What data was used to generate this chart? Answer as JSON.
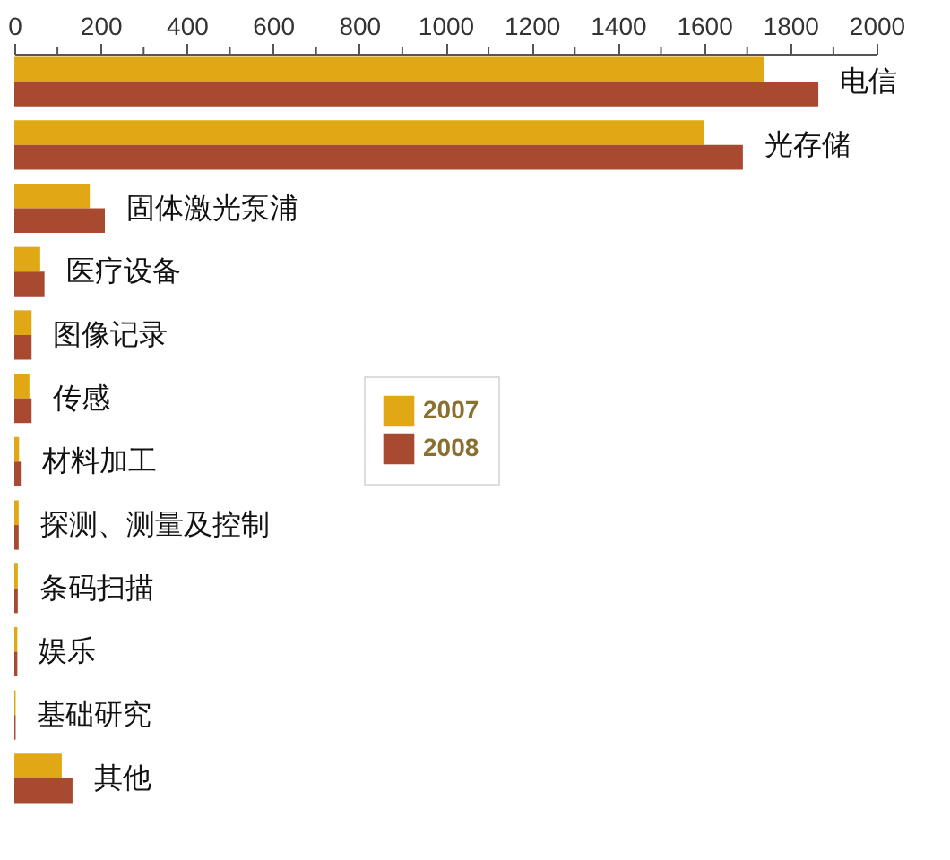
{
  "chart_data": {
    "type": "bar",
    "orientation": "horizontal",
    "categories": [
      "电信",
      "光存储",
      "固体激光泵浦",
      "医疗设备",
      "图像记录",
      "传感",
      "材料加工",
      "探测、测量及控制",
      "条码扫描",
      "娱乐",
      "基础研究",
      "其他"
    ],
    "series": [
      {
        "name": "2007",
        "color": "#e0a814",
        "values": [
          1740,
          1600,
          175,
          60,
          40,
          35,
          11,
          10,
          8,
          7,
          3,
          110
        ]
      },
      {
        "name": "2008",
        "color": "#a84a30",
        "values": [
          1865,
          1690,
          210,
          70,
          40,
          40,
          15,
          10,
          8,
          7,
          3,
          135
        ]
      }
    ],
    "xlim": [
      0,
      2000
    ],
    "xticks": [
      0,
      {
        "value": 100,
        "label": null
      },
      200,
      {
        "value": 300,
        "label": null
      },
      400,
      {
        "value": 500,
        "label": null
      },
      600,
      {
        "value": 700,
        "label": null
      },
      800,
      {
        "value": 900,
        "label": null
      },
      1000,
      {
        "value": 1100,
        "label": null
      },
      1200,
      {
        "value": 1300,
        "label": null
      },
      1400,
      {
        "value": 1500,
        "label": null
      },
      1600,
      {
        "value": 1700,
        "label": null
      },
      1800,
      {
        "value": 1900,
        "label": null
      },
      2000
    ],
    "legend": "right"
  }
}
